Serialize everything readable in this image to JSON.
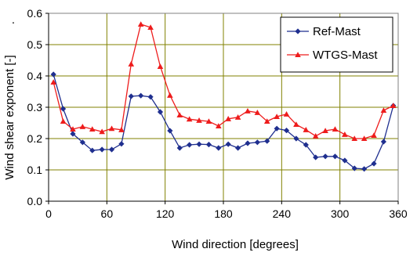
{
  "chart_data": {
    "type": "line",
    "title": "",
    "xlabel": "Wind direction [degrees]",
    "ylabel": "Wind shear exponent [-]",
    "ylabel_suffix": ".",
    "xlim": [
      0,
      360
    ],
    "ylim": [
      0,
      0.6
    ],
    "xticks": [
      0,
      60,
      120,
      180,
      240,
      300,
      360
    ],
    "yticks": [
      0.0,
      0.1,
      0.2,
      0.3,
      0.4,
      0.5,
      0.6
    ],
    "ytick_labels": [
      "0.0",
      "0.1",
      "0.2",
      "0.3",
      "0.4",
      "0.5",
      "0.6"
    ],
    "grid": true,
    "legend_position": "top-right",
    "x": [
      5,
      15,
      25,
      35,
      45,
      55,
      65,
      75,
      85,
      95,
      105,
      115,
      125,
      135,
      145,
      155,
      165,
      175,
      185,
      195,
      205,
      215,
      225,
      235,
      245,
      255,
      265,
      275,
      285,
      295,
      305,
      315,
      325,
      335,
      345,
      355
    ],
    "series": [
      {
        "name": "Ref-Mast",
        "color": "#1f2f8f",
        "marker": "diamond",
        "values": [
          0.405,
          0.295,
          0.215,
          0.188,
          0.162,
          0.165,
          0.165,
          0.183,
          0.335,
          0.337,
          0.333,
          0.285,
          0.225,
          0.17,
          0.18,
          0.182,
          0.181,
          0.17,
          0.182,
          0.17,
          0.185,
          0.188,
          0.192,
          0.232,
          0.226,
          0.2,
          0.18,
          0.14,
          0.143,
          0.143,
          0.13,
          0.105,
          0.103,
          0.12,
          0.19,
          0.305
        ]
      },
      {
        "name": "WTGS-Mast",
        "color": "#ee1c1c",
        "marker": "triangle",
        "values": [
          0.38,
          0.255,
          0.23,
          0.238,
          0.23,
          0.222,
          0.232,
          0.228,
          0.438,
          0.565,
          0.555,
          0.43,
          0.338,
          0.275,
          0.262,
          0.258,
          0.255,
          0.24,
          0.263,
          0.268,
          0.288,
          0.283,
          0.255,
          0.27,
          0.278,
          0.245,
          0.228,
          0.208,
          0.225,
          0.23,
          0.213,
          0.2,
          0.2,
          0.21,
          0.29,
          0.305
        ]
      }
    ]
  },
  "colors": {
    "plot_border": "#808080",
    "grid": "#808000",
    "axis": "#000000"
  }
}
